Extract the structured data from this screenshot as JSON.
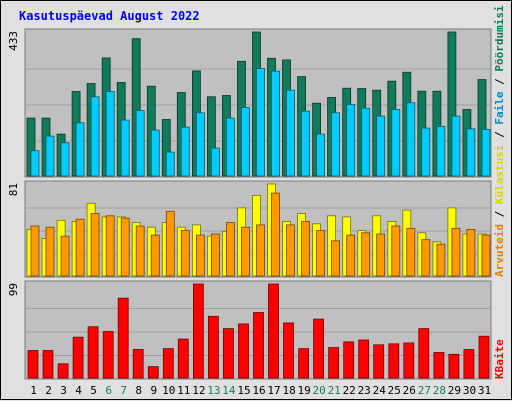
{
  "chart_data": [
    {
      "type": "bar",
      "title": "Kasutuspäevad August 2022",
      "categories": [
        "1",
        "2",
        "3",
        "4",
        "5",
        "6",
        "7",
        "8",
        "9",
        "10",
        "11",
        "12",
        "13",
        "14",
        "15",
        "16",
        "17",
        "18",
        "19",
        "20",
        "21",
        "22",
        "23",
        "24",
        "25",
        "26",
        "27",
        "28",
        "29",
        "30",
        "31"
      ],
      "weekend_days": [
        "6",
        "7",
        "13",
        "14",
        "20",
        "21",
        "27",
        "28"
      ],
      "ymax_label": "433",
      "ylim": [
        0,
        433
      ],
      "series": [
        {
          "name": "Pöördumisi",
          "color": "#117a5a",
          "values": [
            174,
            174,
            126,
            254,
            278,
            355,
            281,
            413,
            270,
            170,
            251,
            316,
            238,
            242,
            345,
            433,
            354,
            349,
            299,
            219,
            236,
            264,
            263,
            258,
            285,
            312,
            255,
            255,
            433,
            200,
            290
          ]
        },
        {
          "name": "Faile",
          "color": "#00ccff",
          "values": [
            76,
            120,
            100,
            160,
            238,
            254,
            168,
            197,
            138,
            72,
            147,
            190,
            84,
            174,
            206,
            323,
            315,
            258,
            195,
            126,
            190,
            215,
            204,
            180,
            200,
            220,
            144,
            149,
            180,
            142,
            140
          ]
        }
      ]
    },
    {
      "type": "bar",
      "ymax_label": "81",
      "ylim": [
        0,
        81
      ],
      "series": [
        {
          "name": "Külastusi",
          "color": "#ffff00",
          "values": [
            41,
            33,
            49,
            48,
            64,
            52,
            52,
            47,
            43,
            47,
            43,
            45,
            35,
            39,
            60,
            71,
            81,
            48,
            55,
            46,
            53,
            52,
            40,
            53,
            48,
            58,
            38,
            30,
            60,
            37,
            37
          ]
        },
        {
          "name": "Arvuteid",
          "color": "#ff9900",
          "values": [
            44,
            43,
            35,
            50,
            55,
            53,
            51,
            44,
            36,
            57,
            40,
            36,
            37,
            47,
            43,
            45,
            73,
            45,
            48,
            40,
            31,
            36,
            38,
            37,
            44,
            42,
            32,
            28,
            42,
            41,
            36
          ]
        }
      ]
    },
    {
      "type": "bar",
      "ymax_label": "99",
      "ylim": [
        0,
        99
      ],
      "series": [
        {
          "name": "KBaite",
          "color": "#ff0000",
          "values": [
            29,
            29,
            15,
            43,
            54,
            49,
            84,
            30,
            12,
            31,
            41,
            99,
            65,
            52,
            57,
            69,
            99,
            58,
            31,
            62,
            32,
            38,
            40,
            35,
            36,
            37,
            52,
            27,
            25,
            30,
            44
          ]
        }
      ]
    }
  ],
  "colors": {
    "background": "#c0c0c0",
    "title": "#0000ff",
    "weekend_label": "#1a7a5a",
    "weekday_label": "#000000"
  }
}
